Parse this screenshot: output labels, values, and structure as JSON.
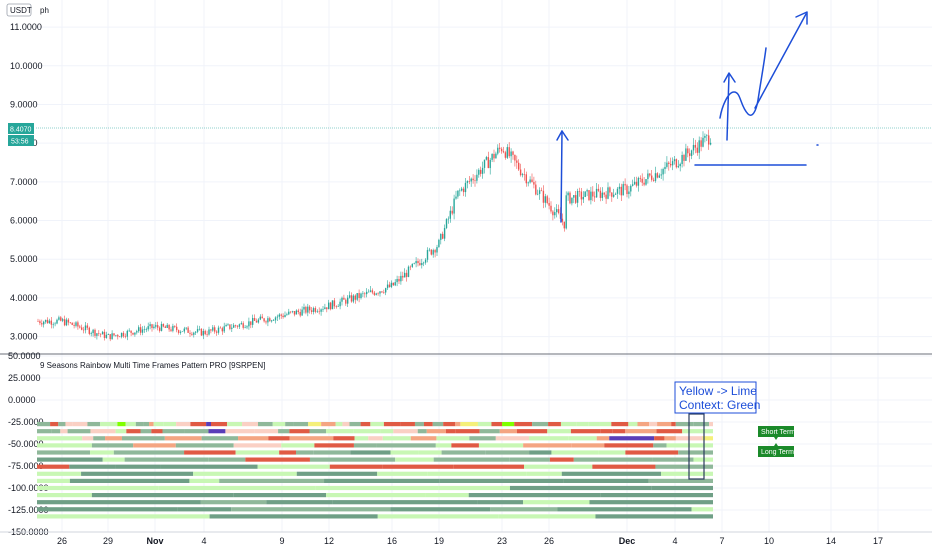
{
  "header": {
    "symbol": "USDT",
    "timeframe": "ph"
  },
  "price_pane": {
    "current_price_badge": "8.4070",
    "countdown_badge": "53:56"
  },
  "indicator_pane": {
    "title": "9 Seasons Rainbow Multi Time Frames Pattern PRO [9SRPEN]"
  },
  "annotations": {
    "callout_line1": "Yellow -> Lime",
    "callout_line2": "Context: Green",
    "tag_short": "Short Term",
    "tag_long": "Long Term"
  },
  "colors": {
    "up": "#26a69a",
    "down": "#ef5350",
    "grid": "#f0f3fa",
    "price_line": "#26a69a",
    "annotation": "#1d4ed8",
    "tag_green": "#1b8a2a"
  },
  "chart_data": [
    {
      "type": "candlestick",
      "title": "",
      "xlabel": "",
      "ylabel": "",
      "x_tick_labels": [
        "26",
        "29",
        "Nov",
        "4",
        "9",
        "12",
        "16",
        "19",
        "23",
        "26",
        "Dec",
        "4",
        "7",
        "10",
        "14",
        "17"
      ],
      "y_tick_labels": [
        "3.0000",
        "4.0000",
        "5.0000",
        "6.0000",
        "7.0000",
        "8.0000",
        "9.0000",
        "10.0000",
        "11.0000"
      ],
      "ylim": [
        2.55,
        11.7
      ],
      "close_path": [
        [
          "26",
          3.4
        ],
        [
          "29",
          3.0
        ],
        [
          "Nov",
          3.25
        ],
        [
          "4",
          3.1
        ],
        [
          "9",
          3.55
        ],
        [
          "12",
          3.8
        ],
        [
          "16",
          4.3
        ],
        [
          "19",
          5.4
        ],
        [
          "19",
          6.7
        ],
        [
          "23",
          7.9
        ],
        [
          "26",
          5.9
        ],
        [
          "26",
          6.5
        ],
        [
          "Dec",
          6.8
        ],
        [
          "4",
          7.5
        ],
        [
          "7",
          8.4
        ]
      ],
      "last_price": 8.407
    },
    {
      "type": "heatmap",
      "title": "9 Seasons Rainbow Multi Time Frames Pattern PRO [9SRPEN]",
      "y_tick_labels": [
        "50.0000",
        "25.0000",
        "0.0000",
        "-25.0000",
        "-50.0000",
        "-75.0000",
        "-100.0000",
        "-125.0000",
        "-150.0000"
      ],
      "ylim": [
        -150,
        50
      ],
      "rows": 14,
      "palette": [
        "#e05a44",
        "#f4a582",
        "#fad0c4",
        "#f5f07a",
        "#5a3db8",
        "#7fff00",
        "#c8f7b4",
        "#8fb89a",
        "#6f9f86"
      ]
    }
  ]
}
